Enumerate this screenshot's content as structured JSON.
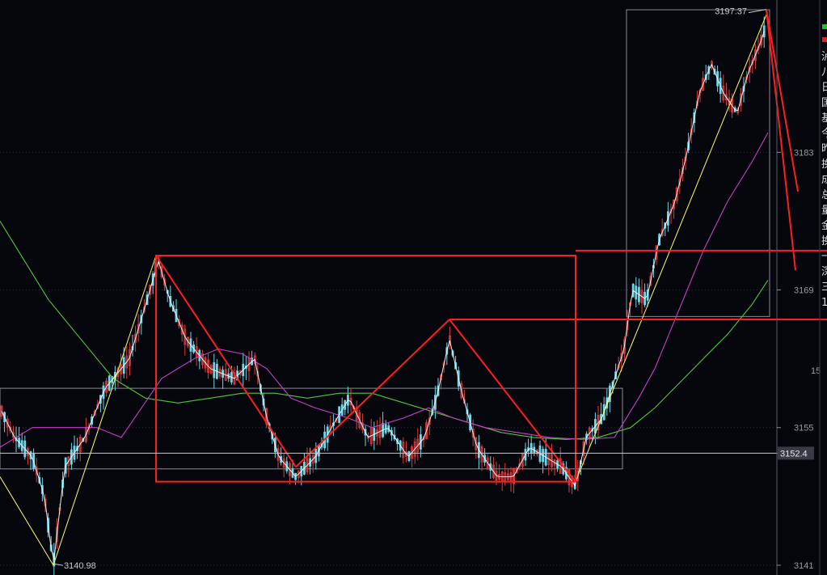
{
  "chart_data": {
    "type": "candlestick",
    "y_ticks": [
      3183,
      3169,
      3155,
      3141
    ],
    "y_tick_partial": "15",
    "ylim": [
      3140.5,
      3198
    ],
    "grid": "dotted horizontal",
    "colors": {
      "background": "#06060d",
      "up": "#e23b3b",
      "down": "#6fd6e6",
      "ma_fast": "#f2f2f2",
      "ma_mid": "#c640c6",
      "ma_slow": "#4ec93a",
      "drawing": "#ff1e1e",
      "trend": "#ffff66",
      "guide": "#8a8a96"
    },
    "current_price": "3152.4",
    "current_price_value": 3152.4,
    "high_label": "3197.37",
    "high_value": 3197.37,
    "low_label": "3140.98",
    "low_value": 3140.98,
    "price_path": [
      [
        0,
        3157
      ],
      [
        18,
        3154
      ],
      [
        40,
        3152
      ],
      [
        55,
        3148
      ],
      [
        66,
        3141
      ],
      [
        80,
        3151
      ],
      [
        105,
        3154
      ],
      [
        130,
        3159
      ],
      [
        160,
        3162
      ],
      [
        182,
        3168
      ],
      [
        196,
        3172
      ],
      [
        210,
        3168
      ],
      [
        230,
        3164
      ],
      [
        260,
        3161
      ],
      [
        290,
        3160
      ],
      [
        315,
        3162
      ],
      [
        330,
        3156
      ],
      [
        345,
        3152
      ],
      [
        366,
        3150
      ],
      [
        390,
        3152
      ],
      [
        410,
        3155
      ],
      [
        432,
        3158
      ],
      [
        455,
        3154
      ],
      [
        480,
        3155
      ],
      [
        505,
        3152
      ],
      [
        525,
        3154
      ],
      [
        540,
        3158
      ],
      [
        556,
        3164
      ],
      [
        570,
        3159
      ],
      [
        590,
        3153
      ],
      [
        615,
        3150
      ],
      [
        635,
        3150
      ],
      [
        655,
        3153
      ],
      [
        675,
        3152
      ],
      [
        695,
        3151
      ],
      [
        712,
        3149
      ],
      [
        725,
        3154
      ],
      [
        745,
        3156
      ],
      [
        772,
        3163
      ],
      [
        782,
        3169
      ],
      [
        800,
        3168
      ],
      [
        815,
        3174
      ],
      [
        835,
        3178
      ],
      [
        850,
        3183
      ],
      [
        865,
        3189
      ],
      [
        880,
        3192
      ],
      [
        895,
        3189
      ],
      [
        912,
        3187
      ],
      [
        925,
        3191
      ],
      [
        940,
        3194
      ],
      [
        948,
        3196
      ]
    ],
    "ma_mid_path": [
      [
        0,
        3153
      ],
      [
        40,
        3155
      ],
      [
        80,
        3155
      ],
      [
        120,
        3155
      ],
      [
        150,
        3154
      ],
      [
        175,
        3157
      ],
      [
        200,
        3160
      ],
      [
        240,
        3162
      ],
      [
        270,
        3163
      ],
      [
        300,
        3162.5
      ],
      [
        330,
        3161
      ],
      [
        360,
        3158
      ],
      [
        390,
        3157
      ],
      [
        430,
        3156
      ],
      [
        460,
        3155
      ],
      [
        500,
        3156
      ],
      [
        530,
        3157
      ],
      [
        560,
        3156
      ],
      [
        600,
        3155
      ],
      [
        640,
        3154.5
      ],
      [
        680,
        3154
      ],
      [
        720,
        3153.8
      ],
      [
        760,
        3154
      ],
      [
        790,
        3158
      ],
      [
        810,
        3161
      ],
      [
        840,
        3167
      ],
      [
        870,
        3173
      ],
      [
        900,
        3178
      ],
      [
        930,
        3182
      ],
      [
        950,
        3185
      ]
    ],
    "ma_slow_path": [
      [
        0,
        3176
      ],
      [
        30,
        3172
      ],
      [
        60,
        3168
      ],
      [
        100,
        3164
      ],
      [
        140,
        3160
      ],
      [
        180,
        3158
      ],
      [
        220,
        3157.5
      ],
      [
        260,
        3158
      ],
      [
        300,
        3158.5
      ],
      [
        340,
        3158.5
      ],
      [
        380,
        3158
      ],
      [
        420,
        3158.5
      ],
      [
        460,
        3158.5
      ],
      [
        500,
        3157.5
      ],
      [
        540,
        3156.5
      ],
      [
        580,
        3155.5
      ],
      [
        620,
        3154.5
      ],
      [
        660,
        3154
      ],
      [
        700,
        3153.8
      ],
      [
        740,
        3154
      ],
      [
        780,
        3155
      ],
      [
        810,
        3157
      ],
      [
        840,
        3159.5
      ],
      [
        870,
        3162
      ],
      [
        900,
        3164.5
      ],
      [
        930,
        3167.5
      ],
      [
        950,
        3170
      ]
    ],
    "drawing_lines": [
      [
        [
          193,
          3172.5
        ],
        [
          366,
          3151
        ]
      ],
      [
        [
          366,
          3151
        ],
        [
          556,
          3166
        ]
      ],
      [
        [
          556,
          3166
        ],
        [
          712,
          3149.5
        ]
      ],
      [
        [
          948,
          3197.5
        ],
        [
          987,
          3179
        ]
      ],
      [
        [
          948,
          3197.5
        ],
        [
          984,
          3171
        ]
      ]
    ],
    "drawing_rects": [
      [
        [
          193,
          3172.5
        ],
        [
          712,
          3149.5
        ]
      ]
    ],
    "drawing_hlines": [
      [
        [
          556,
          3166
        ],
        [
          1023,
          3166
        ]
      ],
      [
        [
          712,
          3173
        ],
        [
          1023,
          3173
        ]
      ]
    ],
    "trend_lines": [
      [
        [
          66,
          3141
        ],
        [
          193,
          3172.5
        ]
      ],
      [
        [
          0,
          3150
        ],
        [
          66,
          3141
        ]
      ],
      [
        [
          193,
          3172.5
        ],
        [
          366,
          3151
        ]
      ],
      [
        [
          712,
          3149.5
        ],
        [
          948,
          3197
        ]
      ]
    ],
    "guide_boxes": [
      [
        [
          0,
          3159
        ],
        [
          770,
          3150.8
        ]
      ],
      [
        [
          775,
          3197.5
        ],
        [
          952,
          3166.3
        ]
      ]
    ]
  },
  "sidebar": {
    "glyphs": [
      "泸",
      "八",
      "日",
      "国",
      "基",
      "今",
      "昨",
      "换",
      "成",
      "总",
      "量",
      "金",
      "换",
      "一",
      "深",
      "三",
      "1"
    ],
    "marker_colors": [
      "#22c022",
      "#e02020"
    ]
  }
}
